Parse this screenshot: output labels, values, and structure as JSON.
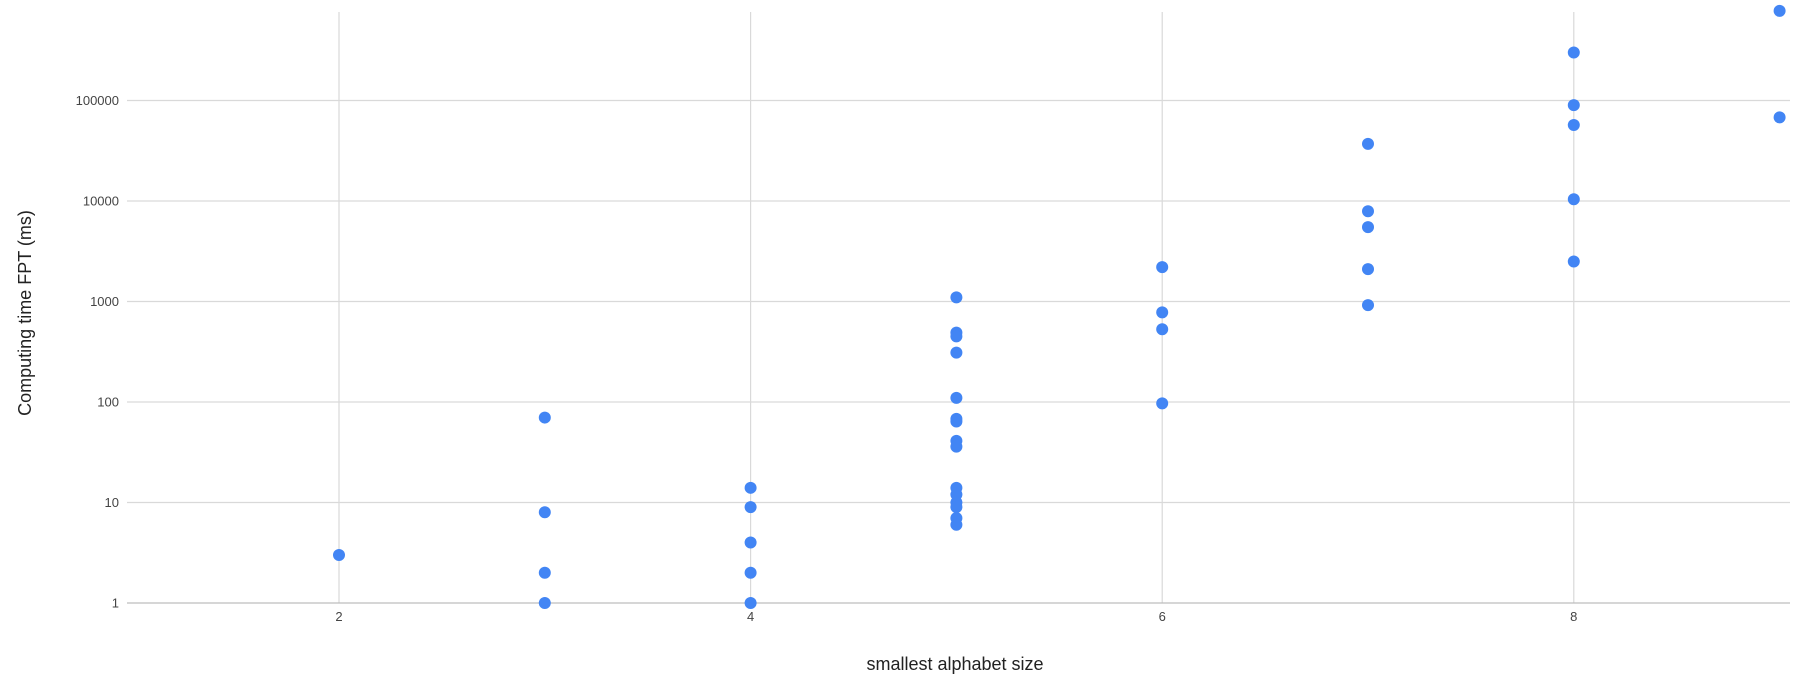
{
  "chart_data": {
    "type": "scatter",
    "title": "",
    "xlabel": "smallest alphabet size",
    "ylabel": "Computing time FPT (ms)",
    "x_ticks": [
      2,
      4,
      6,
      8
    ],
    "y_scale": "log",
    "y_ticks": [
      1,
      10,
      100,
      1000,
      10000,
      100000
    ],
    "y_tick_labels": [
      "1",
      "10",
      "100",
      "1000",
      "10000",
      "100000"
    ],
    "xlim": [
      0.95,
      9.1
    ],
    "ylim": [
      1,
      900000
    ],
    "grid": true,
    "legend": "none",
    "series": [
      {
        "color": "#4285f4",
        "points": [
          [
            2,
            3
          ],
          [
            3,
            70
          ],
          [
            3,
            8
          ],
          [
            3,
            2
          ],
          [
            3,
            1
          ],
          [
            4,
            14
          ],
          [
            4,
            9
          ],
          [
            4,
            4
          ],
          [
            4,
            2
          ],
          [
            4,
            1
          ],
          [
            5,
            1100
          ],
          [
            5,
            490
          ],
          [
            5,
            450
          ],
          [
            5,
            310
          ],
          [
            5,
            110
          ],
          [
            5,
            68
          ],
          [
            5,
            64
          ],
          [
            5,
            41
          ],
          [
            5,
            36
          ],
          [
            5,
            14
          ],
          [
            5,
            12
          ],
          [
            5,
            10
          ],
          [
            5,
            9
          ],
          [
            5,
            7
          ],
          [
            5,
            6
          ],
          [
            6,
            2200
          ],
          [
            6,
            780
          ],
          [
            6,
            530
          ],
          [
            6,
            97
          ],
          [
            7,
            37000
          ],
          [
            7,
            7900
          ],
          [
            7,
            5500
          ],
          [
            7,
            2100
          ],
          [
            7,
            920
          ],
          [
            8,
            300000
          ],
          [
            8,
            90000
          ],
          [
            8,
            57000
          ],
          [
            8,
            10400
          ],
          [
            8,
            2500
          ],
          [
            9,
            780000
          ],
          [
            9,
            68000
          ]
        ]
      }
    ]
  }
}
